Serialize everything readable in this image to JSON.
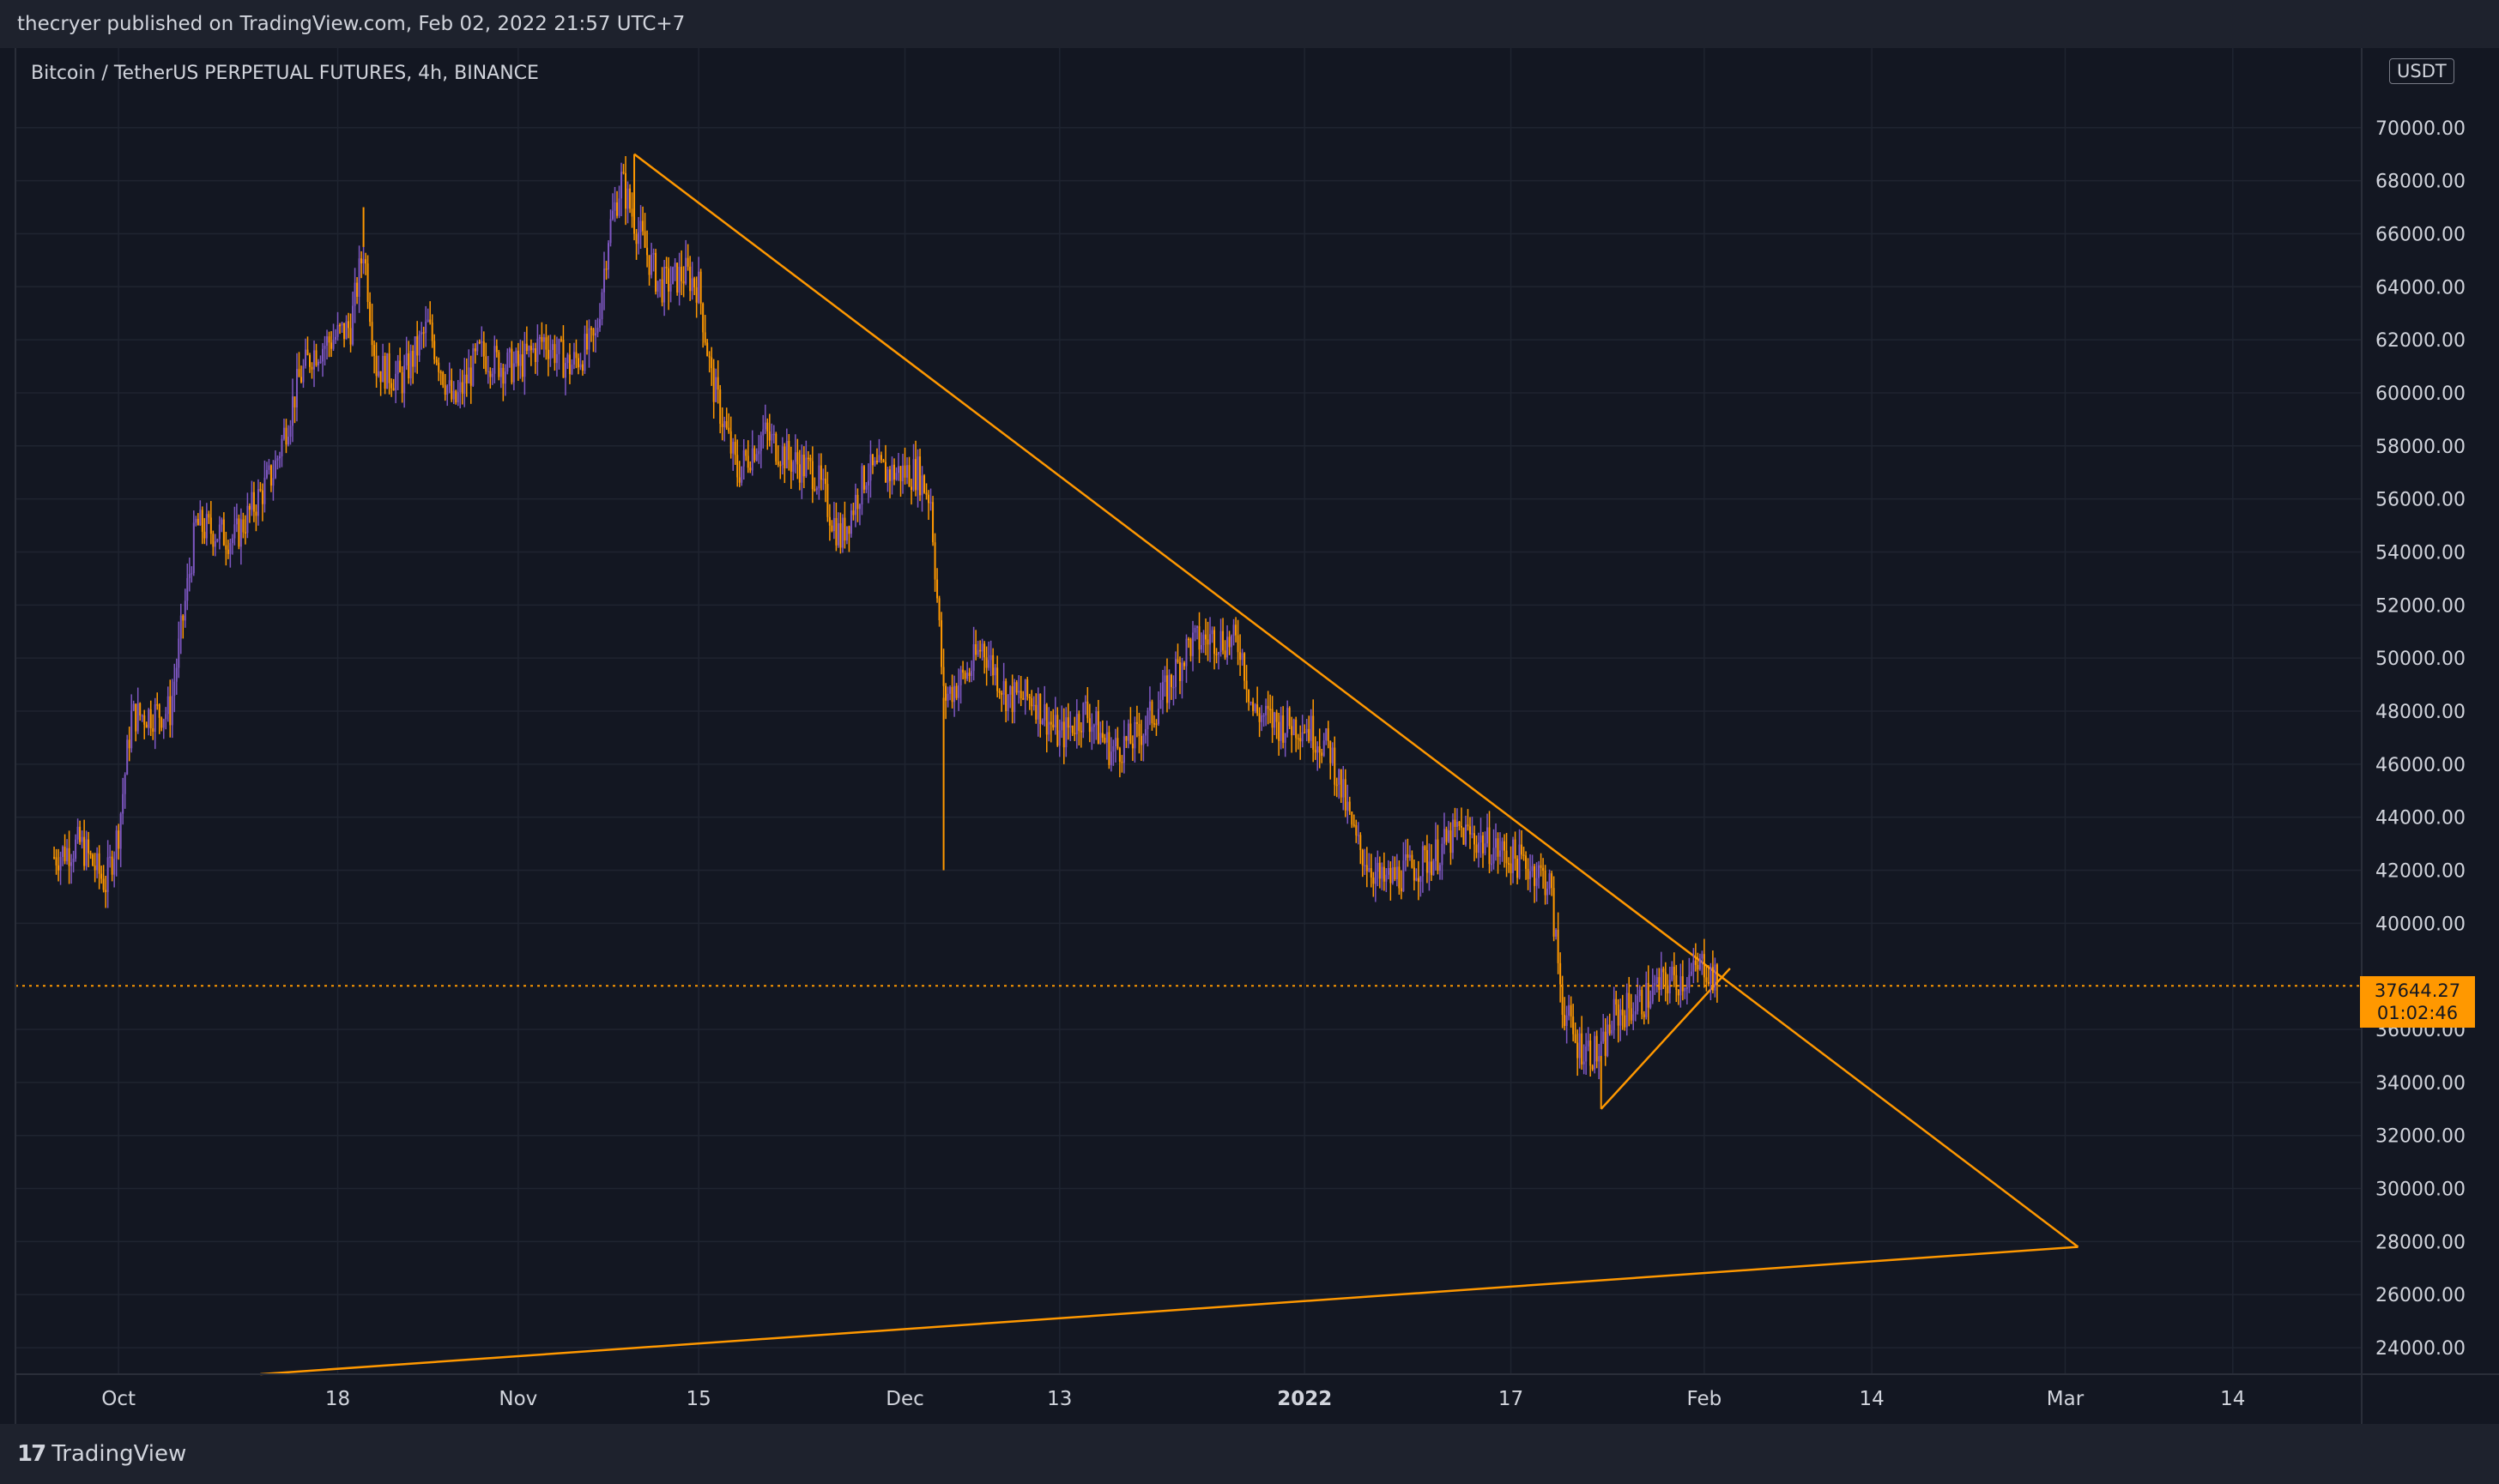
{
  "header": {
    "published_text": "thecryer published on TradingView.com, Feb 02, 2022 21:57 UTC+7"
  },
  "footer": {
    "brand": "TradingView"
  },
  "chart_data": {
    "type": "candlestick",
    "title": "Bitcoin / TetherUS PERPETUAL FUTURES, 4h, BINANCE",
    "price_unit": "USDT",
    "last_price": "37644.27",
    "countdown": "01:02:46",
    "ylim": [
      23000,
      73000
    ],
    "y_ticks": [
      "70000.00",
      "68000.00",
      "66000.00",
      "64000.00",
      "62000.00",
      "60000.00",
      "58000.00",
      "56000.00",
      "54000.00",
      "52000.00",
      "50000.00",
      "48000.00",
      "46000.00",
      "44000.00",
      "42000.00",
      "40000.00",
      "36000.00",
      "34000.00",
      "32000.00",
      "30000.00",
      "28000.00",
      "26000.00",
      "24000.00"
    ],
    "x_ticks": [
      {
        "label": "Oct",
        "date": "2021-10-01",
        "bold": false
      },
      {
        "label": "18",
        "date": "2021-10-18",
        "bold": false
      },
      {
        "label": "Nov",
        "date": "2021-11-01",
        "bold": false
      },
      {
        "label": "15",
        "date": "2021-11-15",
        "bold": false
      },
      {
        "label": "Dec",
        "date": "2021-12-01",
        "bold": false
      },
      {
        "label": "13",
        "date": "2021-12-13",
        "bold": false
      },
      {
        "label": "2022",
        "date": "2022-01-01",
        "bold": true
      },
      {
        "label": "17",
        "date": "2022-01-17",
        "bold": false
      },
      {
        "label": "Feb",
        "date": "2022-02-01",
        "bold": false
      },
      {
        "label": "14",
        "date": "2022-02-14",
        "bold": false
      },
      {
        "label": "Mar",
        "date": "2022-03-01",
        "bold": false
      },
      {
        "label": "14",
        "date": "2022-03-14",
        "bold": false
      }
    ],
    "price_path": [
      [
        "2021-09-26",
        42500
      ],
      [
        "2021-09-28",
        43000
      ],
      [
        "2021-09-30",
        41500
      ],
      [
        "2021-10-01",
        43500
      ],
      [
        "2021-10-02",
        47800
      ],
      [
        "2021-10-05",
        48000
      ],
      [
        "2021-10-06",
        51500
      ],
      [
        "2021-10-07",
        55000
      ],
      [
        "2021-10-10",
        54500
      ],
      [
        "2021-10-13",
        57000
      ],
      [
        "2021-10-15",
        60500
      ],
      [
        "2021-10-16",
        61500
      ],
      [
        "2021-10-19",
        62500
      ],
      [
        "2021-10-20",
        65500
      ],
      [
        "2021-10-21",
        61000
      ],
      [
        "2021-10-23",
        60500
      ],
      [
        "2021-10-25",
        62500
      ],
      [
        "2021-10-27",
        59500
      ],
      [
        "2021-10-29",
        61500
      ],
      [
        "2021-10-31",
        61000
      ],
      [
        "2021-11-01",
        61000
      ],
      [
        "2021-11-03",
        62000
      ],
      [
        "2021-11-05",
        61000
      ],
      [
        "2021-11-07",
        62000
      ],
      [
        "2021-11-08",
        66000
      ],
      [
        "2021-11-09",
        68000
      ],
      [
        "2021-11-10",
        66500
      ],
      [
        "2021-11-12",
        64000
      ],
      [
        "2021-11-14",
        64500
      ],
      [
        "2021-11-15",
        64000
      ],
      [
        "2021-11-16",
        60500
      ],
      [
        "2021-11-18",
        57000
      ],
      [
        "2021-11-20",
        58500
      ],
      [
        "2021-11-22",
        57500
      ],
      [
        "2021-11-24",
        57000
      ],
      [
        "2021-11-26",
        54500
      ],
      [
        "2021-11-28",
        57000
      ],
      [
        "2021-11-30",
        57000
      ],
      [
        "2021-12-02",
        57000
      ],
      [
        "2021-12-03",
        56000
      ],
      [
        "2021-12-04",
        48500
      ],
      [
        "2021-12-06",
        49500
      ],
      [
        "2021-12-07",
        50500
      ],
      [
        "2021-12-09",
        48500
      ],
      [
        "2021-12-11",
        48500
      ],
      [
        "2021-12-13",
        47000
      ],
      [
        "2021-12-15",
        48000
      ],
      [
        "2021-12-17",
        46500
      ],
      [
        "2021-12-19",
        47000
      ],
      [
        "2021-12-21",
        48500
      ],
      [
        "2021-12-23",
        50500
      ],
      [
        "2021-12-25",
        50800
      ],
      [
        "2021-12-27",
        50500
      ],
      [
        "2021-12-28",
        48000
      ],
      [
        "2021-12-30",
        47500
      ],
      [
        "2022-01-01",
        47500
      ],
      [
        "2022-01-03",
        46500
      ],
      [
        "2022-01-05",
        43000
      ],
      [
        "2022-01-07",
        41500
      ],
      [
        "2022-01-09",
        42000
      ],
      [
        "2022-01-11",
        42500
      ],
      [
        "2022-01-13",
        43500
      ],
      [
        "2022-01-15",
        43000
      ],
      [
        "2022-01-17",
        42500
      ],
      [
        "2022-01-19",
        42000
      ],
      [
        "2022-01-20",
        41500
      ],
      [
        "2022-01-21",
        37000
      ],
      [
        "2022-01-22",
        35500
      ],
      [
        "2022-01-24",
        35000
      ],
      [
        "2022-01-25",
        36500
      ],
      [
        "2022-01-27",
        37000
      ],
      [
        "2022-01-29",
        37800
      ],
      [
        "2022-01-31",
        38000
      ],
      [
        "2022-02-01",
        38500
      ],
      [
        "2022-02-02",
        37644
      ]
    ],
    "spikes": [
      {
        "date": "2021-12-04",
        "low": 42000
      },
      {
        "date": "2021-11-10",
        "high": 69000
      },
      {
        "date": "2021-10-20",
        "high": 67000
      },
      {
        "date": "2022-01-24",
        "low": 33000
      }
    ],
    "trendlines": [
      {
        "from": [
          "2021-11-10",
          69000
        ],
        "to": [
          "2022-03-02",
          27800
        ]
      },
      {
        "from": [
          "2021-10-12",
          23000
        ],
        "to": [
          "2022-03-02",
          27800
        ]
      },
      {
        "from": [
          "2022-01-24",
          33000
        ],
        "to": [
          "2022-02-03",
          38300
        ]
      }
    ],
    "colors": {
      "background": "#131722",
      "grid": "#1f2430",
      "up": "#7e57c2",
      "down": "#ff9800",
      "trendline": "#ff9800",
      "axis_text": "#d1d4dc",
      "price_line": "#ff9800"
    }
  }
}
